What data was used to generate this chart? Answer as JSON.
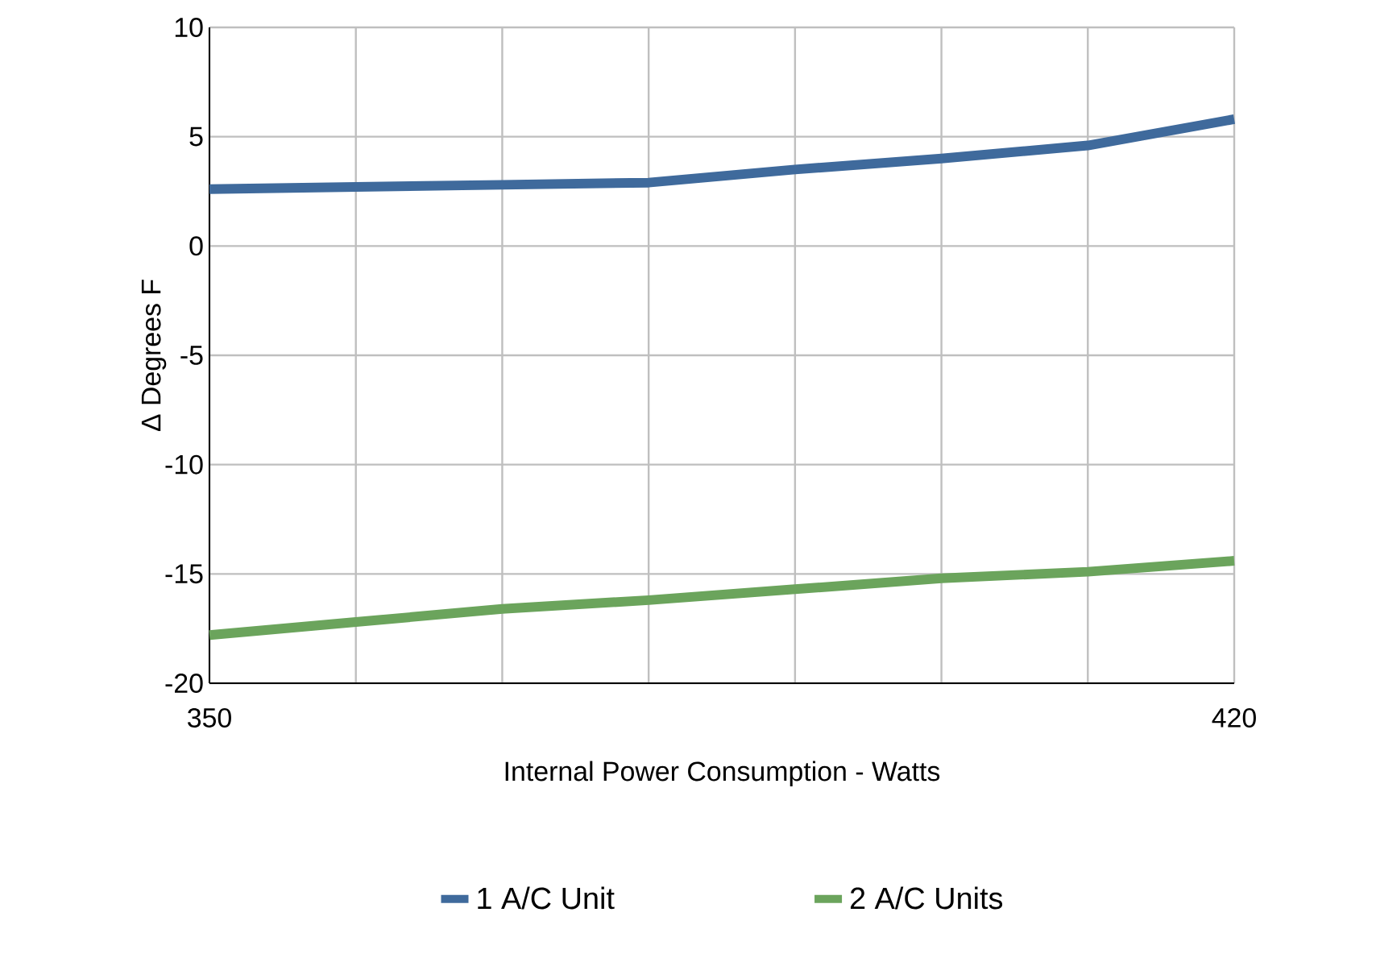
{
  "chart_data": {
    "type": "line",
    "xlabel": "Internal Power Consumption - Watts",
    "ylabel": "Δ Degrees F",
    "x": [
      350,
      360,
      370,
      380,
      390,
      400,
      410,
      420
    ],
    "series": [
      {
        "name": "1 A/C Unit",
        "color": "#3f6a9c",
        "values": [
          2.6,
          2.7,
          2.8,
          2.9,
          3.5,
          4.0,
          4.6,
          5.8
        ]
      },
      {
        "name": "2 A/C Units",
        "color": "#6ba45c",
        "values": [
          -17.8,
          -17.2,
          -16.6,
          -16.2,
          -15.7,
          -15.2,
          -14.9,
          -14.4
        ]
      }
    ],
    "xlim": [
      350,
      420
    ],
    "xticks": [
      {
        "value": 350,
        "label": "350"
      },
      {
        "value": 360,
        "label": null
      },
      {
        "value": 370,
        "label": null
      },
      {
        "value": 380,
        "label": null
      },
      {
        "value": 390,
        "label": null
      },
      {
        "value": 400,
        "label": null
      },
      {
        "value": 410,
        "label": null
      },
      {
        "value": 420,
        "label": "420"
      }
    ],
    "ylim": [
      -20,
      10
    ],
    "yticks": [
      -20,
      -15,
      -10,
      -5,
      0,
      5,
      10
    ],
    "grid": true,
    "legend": "bottom",
    "marker": "none",
    "line_style": "solid"
  }
}
